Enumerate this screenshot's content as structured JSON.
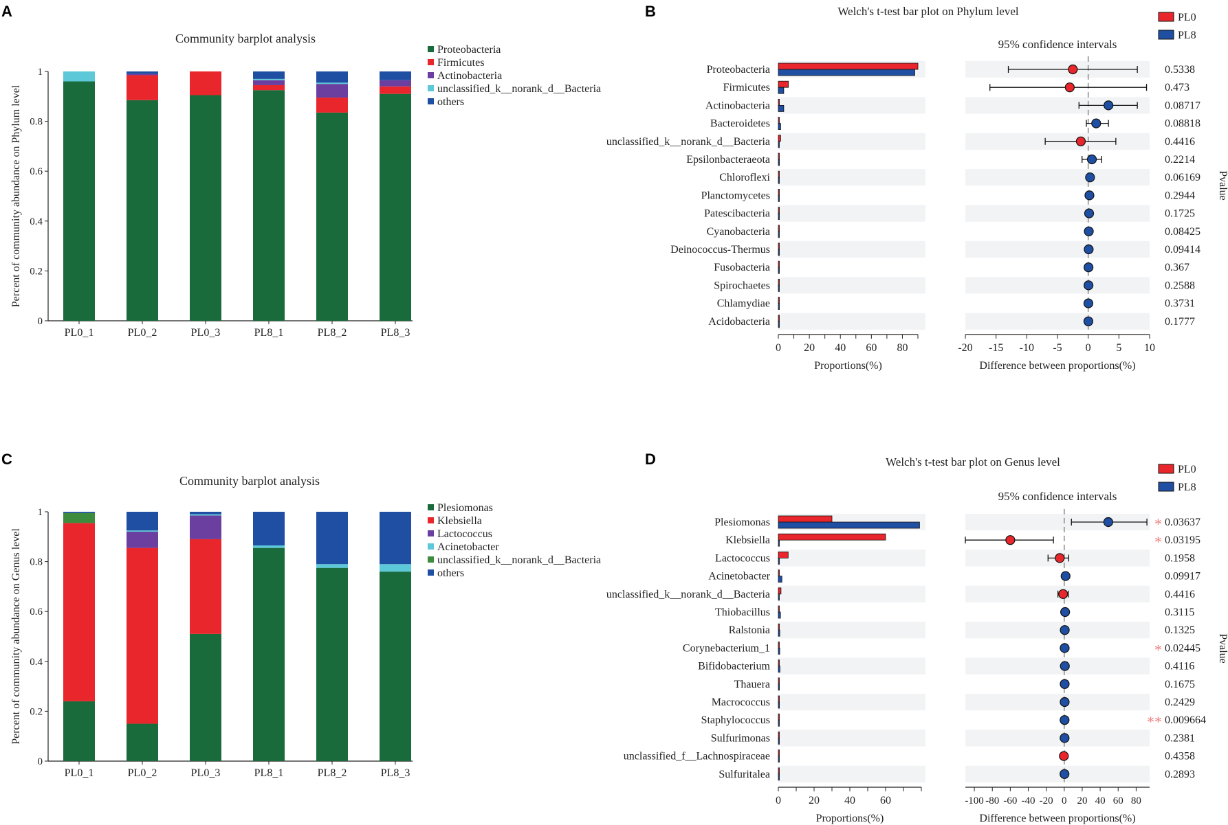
{
  "colors": {
    "proteobacteria": "#1a6b3c",
    "firmicutes": "#e8262b",
    "actinobacteria": "#6b3fa0",
    "unclassified": "#5cc8d8",
    "others": "#1f4fa3",
    "genus_plesiomonas": "#1a6b3c",
    "genus_klebsiella": "#e8262b",
    "genus_lactococcus": "#6b3fa0",
    "genus_acinetobacter": "#5cc8d8",
    "genus_unclassified": "#3d8b3d",
    "genus_others": "#1f4fa3",
    "pl0": "#e8262b",
    "pl8": "#1f4fa3",
    "row_band": "#f2f3f5",
    "star": "#f08080"
  },
  "panels": {
    "a": "A",
    "b": "B",
    "c": "C",
    "d": "D"
  },
  "chart_data": [
    {
      "id": "A",
      "type": "bar",
      "stacked": true,
      "title": "Community barplot analysis",
      "ylabel": "Percent of community abundance on Phylum level",
      "xlabel": "",
      "ylim": [
        0,
        1
      ],
      "yticks": [
        "0",
        "0.2",
        "0.4",
        "0.6",
        "0.8",
        "1"
      ],
      "categories": [
        "PL0_1",
        "PL0_2",
        "PL0_3",
        "PL8_1",
        "PL8_2",
        "PL8_3"
      ],
      "legend_position": "top-right",
      "series": [
        {
          "name": "Proteobacteria",
          "color_key": "proteobacteria",
          "values": [
            0.96,
            0.885,
            0.905,
            0.925,
            0.835,
            0.91
          ]
        },
        {
          "name": "Firmicutes",
          "color_key": "firmicutes",
          "values": [
            0.0,
            0.1,
            0.095,
            0.02,
            0.06,
            0.03
          ]
        },
        {
          "name": "Actinobacteria",
          "color_key": "actinobacteria",
          "values": [
            0.0,
            0.005,
            0.0,
            0.02,
            0.055,
            0.025
          ]
        },
        {
          "name": "unclassified_k__norank_d__Bacteria",
          "color_key": "unclassified",
          "values": [
            0.04,
            0.0,
            0.0,
            0.005,
            0.005,
            0.0
          ]
        },
        {
          "name": "others",
          "color_key": "others",
          "values": [
            0.0,
            0.01,
            0.0,
            0.03,
            0.045,
            0.035
          ]
        }
      ]
    },
    {
      "id": "B",
      "type": "bar",
      "title": "Welch's t-test bar plot on Phylum level",
      "ci_title": "95% confidence intervals",
      "legend": [
        "PL0",
        "PL8"
      ],
      "left_xlabel": "Proportions(%)",
      "left_xlim": [
        0,
        90
      ],
      "left_ticks": [
        "0",
        "20",
        "40",
        "60",
        "80"
      ],
      "right_xlabel": "Difference between proportions(%)",
      "right_xlim": [
        -20,
        10
      ],
      "right_ticks": [
        "-20",
        "-15",
        "-10",
        "-5",
        "0",
        "5",
        "10"
      ],
      "pvalue_label": "Pvalue",
      "rows": [
        {
          "name": "Proteobacteria",
          "pl0": 90,
          "pl8": 88,
          "diff": -2.5,
          "ci": [
            -13,
            8
          ],
          "pvalue": "0.5338",
          "sig": ""
        },
        {
          "name": "Firmicutes",
          "pl0": 6.5,
          "pl8": 3.5,
          "diff": -3,
          "ci": [
            -16,
            9.5
          ],
          "pvalue": "0.473",
          "sig": ""
        },
        {
          "name": "Actinobacteria",
          "pl0": 0.3,
          "pl8": 3.5,
          "diff": 3.3,
          "ci": [
            -1.5,
            8
          ],
          "pvalue": "0.08717",
          "sig": ""
        },
        {
          "name": "Bacteroidetes",
          "pl0": 0.3,
          "pl8": 1.5,
          "diff": 1.3,
          "ci": [
            -0.3,
            3.3
          ],
          "pvalue": "0.08818",
          "sig": ""
        },
        {
          "name": "unclassified_k__norank_d__Bacteria",
          "pl0": 1.5,
          "pl8": 0.5,
          "diff": -1.2,
          "ci": [
            -7,
            4.5
          ],
          "pvalue": "0.4416",
          "sig": ""
        },
        {
          "name": "Epsilonbacteraeota",
          "pl0": 0.1,
          "pl8": 0.7,
          "diff": 0.6,
          "ci": [
            -1,
            2.2
          ],
          "pvalue": "0.2214",
          "sig": ""
        },
        {
          "name": "Chloroflexi",
          "pl0": 0.05,
          "pl8": 0.3,
          "diff": 0.3,
          "ci": [
            0.0,
            0.6
          ],
          "pvalue": "0.06169",
          "sig": ""
        },
        {
          "name": "Planctomycetes",
          "pl0": 0.05,
          "pl8": 0.25,
          "diff": 0.2,
          "ci": [
            -0.1,
            0.5
          ],
          "pvalue": "0.2944",
          "sig": ""
        },
        {
          "name": "Patescibacteria",
          "pl0": 0.05,
          "pl8": 0.2,
          "diff": 0.15,
          "ci": [
            -0.1,
            0.4
          ],
          "pvalue": "0.1725",
          "sig": ""
        },
        {
          "name": "Cyanobacteria",
          "pl0": 0.05,
          "pl8": 0.15,
          "diff": 0.1,
          "ci": [
            0.0,
            0.2
          ],
          "pvalue": "0.08425",
          "sig": ""
        },
        {
          "name": "Deinococcus-Thermus",
          "pl0": 0.05,
          "pl8": 0.1,
          "diff": 0.08,
          "ci": [
            0.0,
            0.2
          ],
          "pvalue": "0.09414",
          "sig": ""
        },
        {
          "name": "Fusobacteria",
          "pl0": 0.05,
          "pl8": 0.1,
          "diff": 0.05,
          "ci": [
            -0.05,
            0.15
          ],
          "pvalue": "0.367",
          "sig": ""
        },
        {
          "name": "Spirochaetes",
          "pl0": 0.05,
          "pl8": 0.1,
          "diff": 0.05,
          "ci": [
            -0.05,
            0.15
          ],
          "pvalue": "0.2588",
          "sig": ""
        },
        {
          "name": "Chlamydiae",
          "pl0": 0.05,
          "pl8": 0.1,
          "diff": 0.03,
          "ci": [
            -0.05,
            0.1
          ],
          "pvalue": "0.3731",
          "sig": ""
        },
        {
          "name": "Acidobacteria",
          "pl0": 0.05,
          "pl8": 0.1,
          "diff": 0.03,
          "ci": [
            -0.05,
            0.1
          ],
          "pvalue": "0.1777",
          "sig": ""
        }
      ]
    },
    {
      "id": "C",
      "type": "bar",
      "stacked": true,
      "title": "Community barplot analysis",
      "ylabel": "Percent of community abundance on Genus level",
      "xlabel": "",
      "ylim": [
        0,
        1
      ],
      "yticks": [
        "0",
        "0.2",
        "0.4",
        "0.6",
        "0.8",
        "1"
      ],
      "categories": [
        "PL0_1",
        "PL0_2",
        "PL0_3",
        "PL8_1",
        "PL8_2",
        "PL8_3"
      ],
      "legend_position": "top-right",
      "series": [
        {
          "name": "Plesiomonas",
          "color_key": "genus_plesiomonas",
          "values": [
            0.24,
            0.15,
            0.51,
            0.855,
            0.775,
            0.76
          ]
        },
        {
          "name": "Klebsiella",
          "color_key": "genus_klebsiella",
          "values": [
            0.715,
            0.705,
            0.38,
            0.0,
            0.0,
            0.0
          ]
        },
        {
          "name": "Lactococcus",
          "color_key": "genus_lactococcus",
          "values": [
            0.0,
            0.065,
            0.095,
            0.0,
            0.0,
            0.0
          ]
        },
        {
          "name": "Acinetobacter",
          "color_key": "genus_acinetobacter",
          "values": [
            0.0,
            0.005,
            0.005,
            0.01,
            0.015,
            0.03
          ]
        },
        {
          "name": "unclassified_k__norank_d__Bacteria",
          "color_key": "genus_unclassified",
          "values": [
            0.04,
            0.0,
            0.0,
            0.0,
            0.0,
            0.0
          ]
        },
        {
          "name": "others",
          "color_key": "genus_others",
          "values": [
            0.005,
            0.075,
            0.01,
            0.135,
            0.21,
            0.21
          ]
        }
      ]
    },
    {
      "id": "D",
      "type": "bar",
      "title": "Welch's t-test bar plot on Genus level",
      "ci_title": "95% confidence intervals",
      "legend": [
        "PL0",
        "PL8"
      ],
      "left_xlabel": "Proportions(%)",
      "left_xlim": [
        0,
        80
      ],
      "left_ticks": [
        "0",
        "20",
        "40",
        "60"
      ],
      "right_xlabel": "Difference between proportions(%)",
      "right_xlim": [
        -110,
        95
      ],
      "right_ticks": [
        "-100",
        "-80",
        "-60",
        "-40",
        "-20",
        "0",
        "20",
        "40",
        "60",
        "80"
      ],
      "pvalue_label": "Pvalue",
      "rows": [
        {
          "name": "Plesiomonas",
          "pl0": 30,
          "pl8": 79,
          "diff": 49,
          "ci": [
            8,
            92
          ],
          "pvalue": "0.03637",
          "sig": "*"
        },
        {
          "name": "Klebsiella",
          "pl0": 60,
          "pl8": 0.5,
          "diff": -60,
          "ci": [
            -110,
            -12
          ],
          "pvalue": "0.03195",
          "sig": "*"
        },
        {
          "name": "Lactococcus",
          "pl0": 5.5,
          "pl8": 0.3,
          "diff": -5,
          "ci": [
            -18,
            5
          ],
          "pvalue": "0.1958",
          "sig": ""
        },
        {
          "name": "Acinetobacter",
          "pl0": 0.3,
          "pl8": 2,
          "diff": 1.5,
          "ci": [
            -0.5,
            3.5
          ],
          "pvalue": "0.09917",
          "sig": ""
        },
        {
          "name": "unclassified_k__norank_d__Bacteria",
          "pl0": 1.5,
          "pl8": 0.5,
          "diff": -1.2,
          "ci": [
            -7,
            4.5
          ],
          "pvalue": "0.4416",
          "sig": ""
        },
        {
          "name": "Thiobacillus",
          "pl0": 0.2,
          "pl8": 1.2,
          "diff": 1,
          "ci": [
            -2,
            4
          ],
          "pvalue": "0.3115",
          "sig": ""
        },
        {
          "name": "Ralstonia",
          "pl0": 0.2,
          "pl8": 0.8,
          "diff": 0.6,
          "ci": [
            -0.5,
            2
          ],
          "pvalue": "0.1325",
          "sig": ""
        },
        {
          "name": "Corynebacterium_1",
          "pl0": 0.2,
          "pl8": 0.8,
          "diff": 0.5,
          "ci": [
            0.2,
            1
          ],
          "pvalue": "0.02445",
          "sig": "*"
        },
        {
          "name": "Bifidobacterium",
          "pl0": 0.1,
          "pl8": 0.9,
          "diff": 0.7,
          "ci": [
            -2,
            3.5
          ],
          "pvalue": "0.4116",
          "sig": ""
        },
        {
          "name": "Thauera",
          "pl0": 0.1,
          "pl8": 0.6,
          "diff": 0.5,
          "ci": [
            -0.5,
            1.5
          ],
          "pvalue": "0.1675",
          "sig": ""
        },
        {
          "name": "Macrococcus",
          "pl0": 0.05,
          "pl8": 0.6,
          "diff": 0.5,
          "ci": [
            -1,
            2
          ],
          "pvalue": "0.2429",
          "sig": ""
        },
        {
          "name": "Staphylococcus",
          "pl0": 0.05,
          "pl8": 0.5,
          "diff": 0.4,
          "ci": [
            0.2,
            0.6
          ],
          "pvalue": "0.009664",
          "sig": "**"
        },
        {
          "name": "Sulfurimonas",
          "pl0": 0.05,
          "pl8": 0.5,
          "diff": 0.4,
          "ci": [
            -1,
            2
          ],
          "pvalue": "0.2381",
          "sig": ""
        },
        {
          "name": "unclassified_f__Lachnospiraceae",
          "pl0": 0.5,
          "pl8": 0.1,
          "diff": -0.4,
          "ci": [
            -1.5,
            0.7
          ],
          "pvalue": "0.4358",
          "sig": ""
        },
        {
          "name": "Sulfuritalea",
          "pl0": 0.05,
          "pl8": 0.4,
          "diff": 0.3,
          "ci": [
            -1,
            1.6
          ],
          "pvalue": "0.2893",
          "sig": ""
        }
      ]
    }
  ]
}
